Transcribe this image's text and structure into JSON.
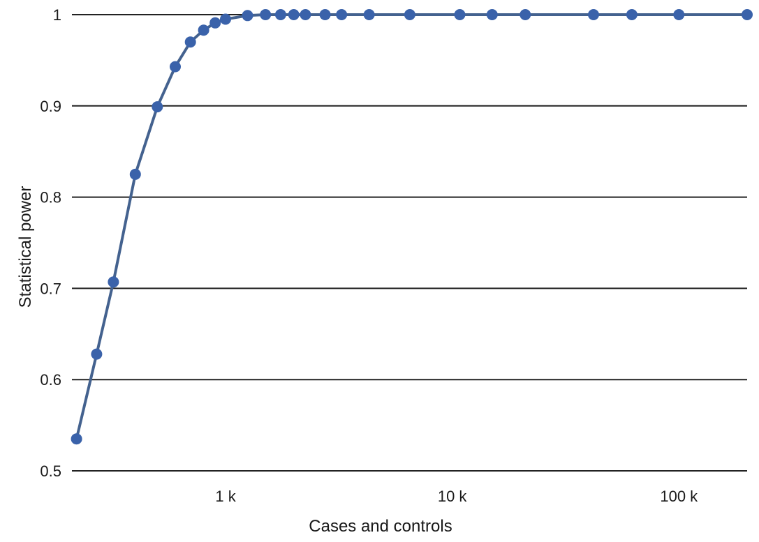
{
  "chart_data": {
    "type": "line",
    "title": "",
    "xlabel": "Cases and controls",
    "ylabel": "Statistical power",
    "x_scale": "log",
    "xlim": [
      210,
      200000
    ],
    "ylim": [
      0.5,
      1.0
    ],
    "grid": "horizontal",
    "y_ticks": [
      {
        "value": 0.5,
        "label": "0.5"
      },
      {
        "value": 0.6,
        "label": "0.6"
      },
      {
        "value": 0.7,
        "label": "0.7"
      },
      {
        "value": 0.8,
        "label": "0.8"
      },
      {
        "value": 0.9,
        "label": "0.9"
      },
      {
        "value": 1.0,
        "label": "1"
      }
    ],
    "x_ticks": [
      {
        "value": 1000,
        "label": "1 k"
      },
      {
        "value": 10000,
        "label": "10 k"
      },
      {
        "value": 100000,
        "label": "100 k"
      }
    ],
    "series_color": "#3a62aa",
    "series_line_color": "#44628f",
    "grid_color": "#222222",
    "series": [
      {
        "x": [
          220,
          270,
          320,
          400,
          500,
          600,
          700,
          800,
          900,
          1000,
          1250,
          1500,
          1750,
          2000,
          2250,
          2750,
          3250,
          4300,
          6500,
          10800,
          15000,
          21000,
          42000,
          62000,
          100000,
          200000
        ],
        "y": [
          0.535,
          0.628,
          0.707,
          0.825,
          0.899,
          0.943,
          0.97,
          0.983,
          0.991,
          0.995,
          0.999,
          1.0,
          1.0,
          1.0,
          1.0,
          1.0,
          1.0,
          1.0,
          1.0,
          1.0,
          1.0,
          1.0,
          1.0,
          1.0,
          1.0,
          1.0
        ]
      }
    ]
  }
}
